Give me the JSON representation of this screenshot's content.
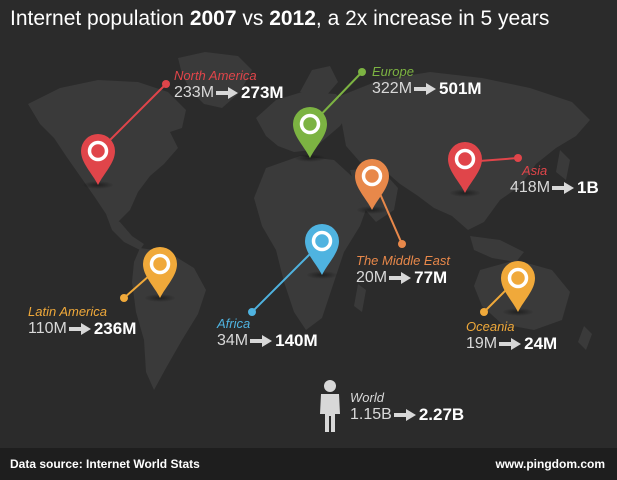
{
  "title": {
    "prefix": "Internet population ",
    "year_a": "2007",
    "vs": " vs ",
    "year_b": "2012",
    "suffix": ", a 2x increase in 5 years"
  },
  "regions": {
    "north_america": {
      "name": "North America",
      "from": "233M",
      "to": "273M",
      "color": "#e0454a"
    },
    "europe": {
      "name": "Europe",
      "from": "322M",
      "to": "501M",
      "color": "#7cb342"
    },
    "asia": {
      "name": "Asia",
      "from": "418M",
      "to": "1B",
      "color": "#e0454a"
    },
    "middle_east": {
      "name": "The Middle East",
      "from": "20M",
      "to": "77M",
      "color": "#e8884a"
    },
    "latin_america": {
      "name": "Latin America",
      "from": "110M",
      "to": "236M",
      "color": "#f0a93a"
    },
    "africa": {
      "name": "Africa",
      "from": "34M",
      "to": "140M",
      "color": "#4fb3e0"
    },
    "oceania": {
      "name": "Oceania",
      "from": "19M",
      "to": "24M",
      "color": "#f0a93a"
    },
    "world": {
      "name": "World",
      "from": "1.15B",
      "to": "2.27B",
      "color": "#d8d8d8"
    }
  },
  "footer": {
    "source": "Data source: Internet World Stats",
    "site": "www.pingdom.com"
  },
  "icons": [
    "map-pin-icon",
    "person-icon",
    "arrow-right-icon"
  ]
}
